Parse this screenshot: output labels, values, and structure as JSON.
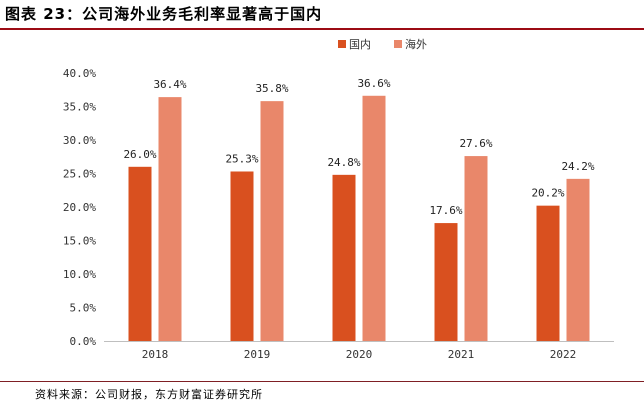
{
  "title": "图表 23：公司海外业务毛利率显著高于国内",
  "source": "资料来源：公司财报，东方财富证券研究所",
  "colors": {
    "domestic": "#d9501f",
    "overseas": "#e9876a",
    "title_rule": "#9c0b14"
  },
  "chart_data": {
    "type": "bar",
    "title": "公司海外业务毛利率显著高于国内",
    "xlabel": "",
    "ylabel": "",
    "categories": [
      "2018",
      "2019",
      "2020",
      "2021",
      "2022"
    ],
    "series": [
      {
        "name": "国内",
        "values": [
          26.0,
          25.3,
          24.8,
          17.6,
          20.2
        ],
        "labels": [
          "26.0%",
          "25.3%",
          "24.8%",
          "17.6%",
          "20.2%"
        ]
      },
      {
        "name": "海外",
        "values": [
          36.4,
          35.8,
          36.6,
          27.6,
          24.2
        ],
        "labels": [
          "36.4%",
          "35.8%",
          "36.6%",
          "27.6%",
          "24.2%"
        ]
      }
    ],
    "ylim": [
      0,
      40
    ],
    "yticks": [
      "0.0%",
      "5.0%",
      "10.0%",
      "15.0%",
      "20.0%",
      "25.0%",
      "30.0%",
      "35.0%",
      "40.0%"
    ],
    "legend_position": "top-right",
    "grid": false
  }
}
